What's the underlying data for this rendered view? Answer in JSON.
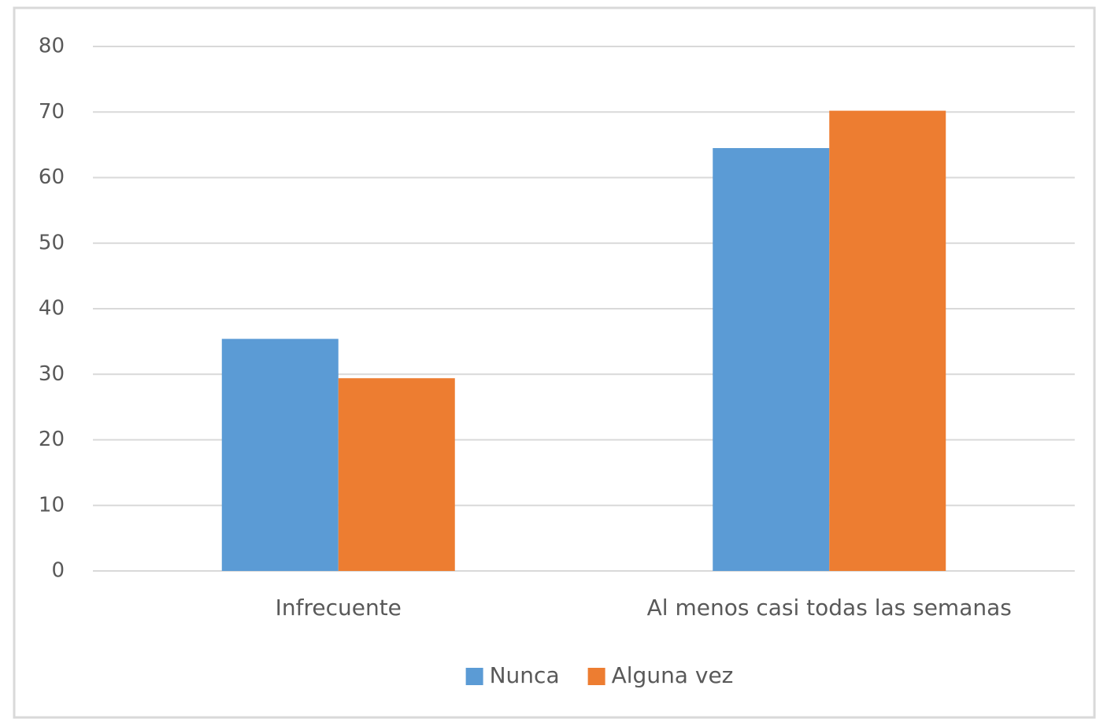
{
  "chart_data": {
    "type": "bar",
    "categories": [
      "Infrecuente",
      "Al menos casi todas las semanas"
    ],
    "series": [
      {
        "name": "Nunca",
        "color": "#5b9bd5",
        "values": [
          35.4,
          64.5
        ]
      },
      {
        "name": "Alguna vez",
        "color": "#ed7d31",
        "values": [
          29.4,
          70.2
        ]
      }
    ],
    "ylim": [
      0,
      80
    ],
    "yticks": [
      0,
      10,
      20,
      30,
      40,
      50,
      60,
      70,
      80
    ],
    "grid": true,
    "legend": "bottom"
  }
}
